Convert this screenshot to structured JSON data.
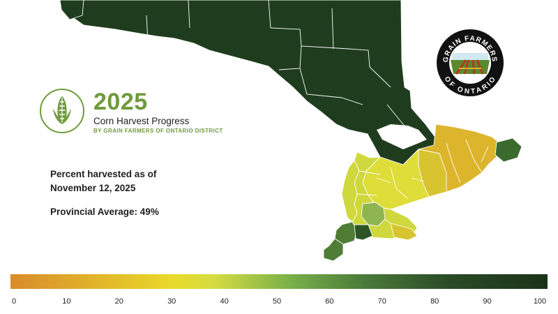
{
  "header": {
    "year": "2025",
    "subtitle": "Corn Harvest Progress",
    "byline": "BY GRAIN FARMERS OF ONTARIO DISTRICT"
  },
  "as_of": {
    "line1": "Percent harvested as of",
    "line2": "November 12, 2025"
  },
  "provincial_average": "Provincial Average: 49%",
  "logo": {
    "top_text": "GRAIN FARMERS",
    "bottom_text": "OF ONTARIO"
  },
  "legend": {
    "ticks": [
      "0",
      "10",
      "20",
      "30",
      "40",
      "50",
      "60",
      "70",
      "80",
      "90",
      "100"
    ],
    "colors": [
      "#d98b2b",
      "#e9d92b",
      "#d5dc42",
      "#79b04a",
      "#4a7a3a",
      "#1a3319"
    ]
  },
  "map": {
    "colors": {
      "northern": "#1f3d1e",
      "eastern_low": "#ddb52d",
      "eastern_mid": "#d8c431",
      "central": "#dedd3a",
      "western": "#cfd83c",
      "mid_green": "#8fb552",
      "green": "#4f7d35",
      "dark_green": "#2d5426",
      "east_tip": "#3a6a2e"
    }
  }
}
